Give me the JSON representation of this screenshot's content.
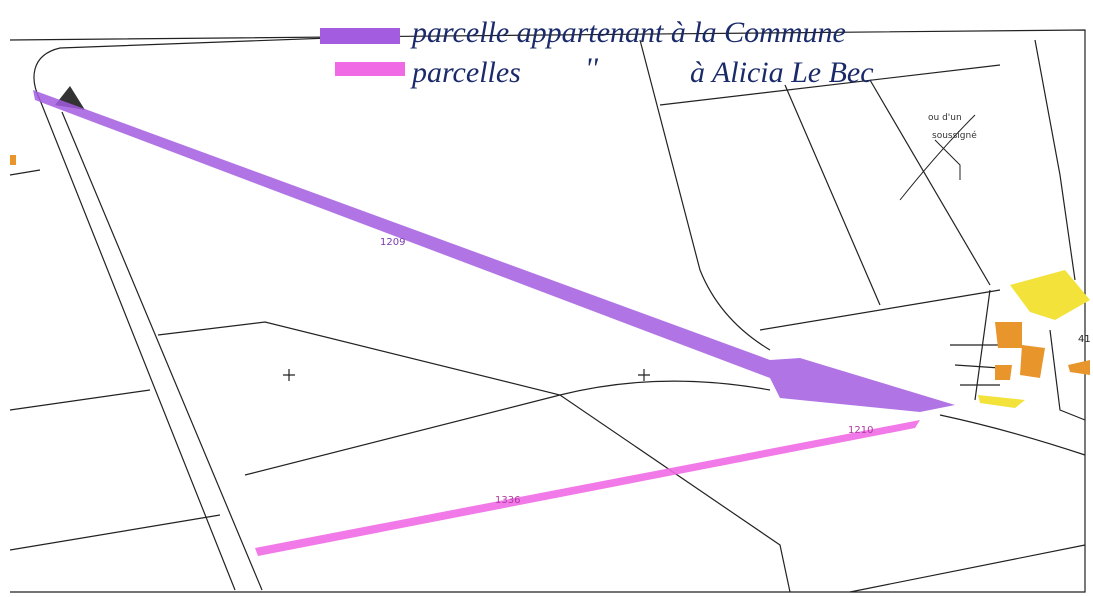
{
  "legend": [
    {
      "label": "parcelle appartenant à la Commune",
      "color": "#a35ce0"
    },
    {
      "label": "parcelles",
      "ditto": "''",
      "label2": "à Alicia Le Bec",
      "color": "#f06ae6"
    }
  ],
  "parcel_labels": [
    "1209",
    "1336",
    "1210",
    "41"
  ],
  "stamp": [
    "ou d'un",
    "soussigné"
  ]
}
